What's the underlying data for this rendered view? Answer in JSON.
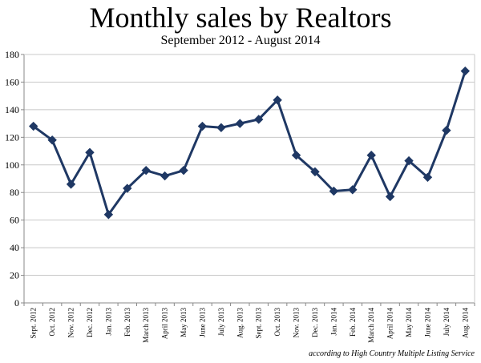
{
  "chart_data": {
    "type": "line",
    "title": "Monthly sales by Realtors",
    "subtitle": "September 2012 - August 2014",
    "xlabel": "",
    "ylabel": "",
    "ylim": [
      0,
      180
    ],
    "yticks": [
      0,
      20,
      40,
      60,
      80,
      100,
      120,
      140,
      160,
      180
    ],
    "grid": true,
    "legend": "none",
    "categories": [
      "Sept. 2012",
      "Oct. 2012",
      "Nov. 2012",
      "Dec. 2012",
      "Jan. 2013",
      "Feb. 2013",
      "March 2013",
      "April 2013",
      "May 2013",
      "June 2013",
      "July 2013",
      "Aug. 2013",
      "Sept. 2013",
      "Oct. 2013",
      "Nov. 2013",
      "Dec. 2013",
      "Jan. 2014",
      "Feb. 2014",
      "March 2014",
      "April 2014",
      "May 2014",
      "June 2014",
      "July 2014",
      "Aug. 2014"
    ],
    "series": [
      {
        "values": [
          128,
          118,
          86,
          109,
          64,
          83,
          96,
          92,
          96,
          128,
          127,
          130,
          133,
          147,
          107,
          95,
          81,
          82,
          107,
          77,
          103,
          91,
          125,
          168
        ]
      }
    ],
    "line_color": "#1f3864",
    "annotation": "according to High Country Multiple Listing Service"
  }
}
